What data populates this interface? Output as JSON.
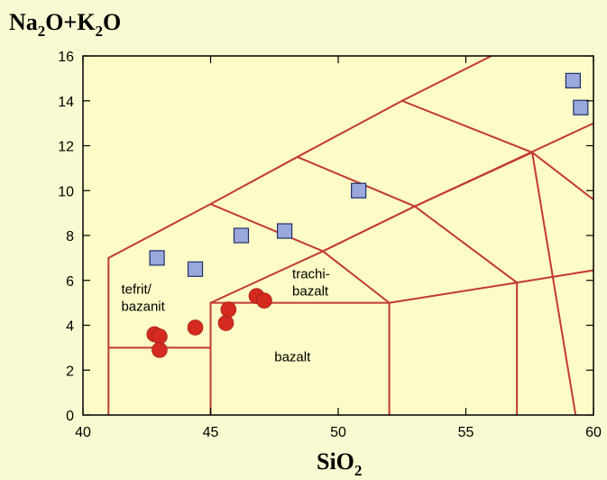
{
  "chart_data": {
    "type": "scatter",
    "title": "",
    "xlabel": "SiO₂",
    "ylabel": "Na₂O+K₂O",
    "xlabel_main": "SiO",
    "xlabel_sub": "2",
    "ylabel_parts": [
      "Na",
      "2",
      "O+K",
      "2",
      "O"
    ],
    "xlim": [
      40,
      60
    ],
    "ylim": [
      0,
      16
    ],
    "x_ticks": [
      40,
      45,
      50,
      55,
      60
    ],
    "y_ticks": [
      0,
      2,
      4,
      6,
      8,
      10,
      12,
      14,
      16
    ],
    "grid": false,
    "series": [
      {
        "marker": "square",
        "color": "#9aa8dc",
        "points": [
          {
            "x": 42.9,
            "y": 7.0
          },
          {
            "x": 44.4,
            "y": 6.5
          },
          {
            "x": 46.2,
            "y": 8.0
          },
          {
            "x": 47.9,
            "y": 8.2
          },
          {
            "x": 50.8,
            "y": 10.0
          },
          {
            "x": 59.2,
            "y": 14.9
          },
          {
            "x": 59.5,
            "y": 13.7
          }
        ]
      },
      {
        "marker": "circle",
        "color": "#d42a20",
        "points": [
          {
            "x": 42.8,
            "y": 3.6
          },
          {
            "x": 43.0,
            "y": 3.5
          },
          {
            "x": 43.0,
            "y": 2.9
          },
          {
            "x": 44.4,
            "y": 3.9
          },
          {
            "x": 45.6,
            "y": 4.1
          },
          {
            "x": 45.7,
            "y": 4.7
          },
          {
            "x": 46.8,
            "y": 5.3
          },
          {
            "x": 47.1,
            "y": 5.1
          }
        ]
      }
    ],
    "field_boundaries": [
      [
        [
          41,
          0
        ],
        [
          41,
          7
        ],
        [
          45,
          9.4
        ],
        [
          48.4,
          11.5
        ],
        [
          52.5,
          14
        ],
        [
          56,
          16
        ]
      ],
      [
        [
          41,
          3
        ],
        [
          45,
          3
        ]
      ],
      [
        [
          45,
          0
        ],
        [
          45,
          5
        ],
        [
          52,
          5
        ],
        [
          52,
          0
        ]
      ],
      [
        [
          45,
          5
        ],
        [
          49.4,
          7.3
        ],
        [
          52,
          5
        ]
      ],
      [
        [
          45,
          9.4
        ],
        [
          49.4,
          7.3
        ],
        [
          53,
          9.3
        ],
        [
          57.6,
          11.7
        ],
        [
          60,
          9.6
        ]
      ],
      [
        [
          48.4,
          11.5
        ],
        [
          53,
          9.3
        ]
      ],
      [
        [
          52.5,
          14
        ],
        [
          57.6,
          11.7
        ]
      ],
      [
        [
          57.6,
          11.7
        ],
        [
          59.3,
          0
        ]
      ],
      [
        [
          57,
          0
        ],
        [
          57,
          5.9
        ],
        [
          63,
          7
        ]
      ],
      [
        [
          52,
          5
        ],
        [
          57,
          5.9
        ]
      ],
      [
        [
          49.4,
          7.3
        ],
        [
          53,
          9.3
        ],
        [
          57,
          5.9
        ]
      ],
      [
        [
          53,
          9.3
        ],
        [
          60,
          13
        ]
      ]
    ],
    "field_labels": [
      {
        "lines": [
          "tefrit/",
          "bazanit"
        ],
        "x": 41.5,
        "y": 5.4
      },
      {
        "lines": [
          "trachi-",
          "bazalt"
        ],
        "x": 48.2,
        "y": 6.1
      },
      {
        "lines": [
          "bazalt"
        ],
        "x": 47.5,
        "y": 2.4
      }
    ],
    "colors": {
      "background": "#fafad2",
      "plot_area": "#fdfbc6",
      "boundary": "#c23a32"
    }
  }
}
